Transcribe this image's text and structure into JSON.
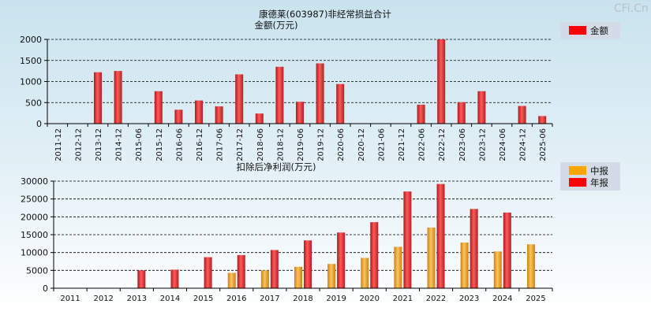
{
  "watermark": "CFi.Cn",
  "colors": {
    "bar_red": "#e8393a",
    "bar_orange": "#f0a22a",
    "legend_red": "#ff0000",
    "legend_orange": "#ffa500",
    "legend_bg": "#d3dbe6"
  },
  "chart_data": [
    {
      "type": "bar",
      "title": "康德莱(603987)非经常损益合计",
      "ylabel": "金额(万元)",
      "ylim": [
        0,
        2000
      ],
      "yticks": [
        0,
        500,
        1000,
        1500,
        2000
      ],
      "grid": true,
      "legend_position": "top-right",
      "categories": [
        "2011-12",
        "2012-12",
        "2013-12",
        "2014-12",
        "2015-06",
        "2015-12",
        "2016-06",
        "2016-12",
        "2017-06",
        "2017-12",
        "2018-06",
        "2018-12",
        "2019-06",
        "2019-12",
        "2020-06",
        "2020-12",
        "2021-06",
        "2021-12",
        "2022-06",
        "2022-12",
        "2023-06",
        "2023-12",
        "2024-06",
        "2024-12",
        "2025-06"
      ],
      "series": [
        {
          "name": "金额",
          "values": [
            0,
            0,
            1220,
            1250,
            0,
            770,
            330,
            550,
            410,
            1170,
            240,
            1350,
            520,
            1430,
            940,
            0,
            0,
            0,
            450,
            2000,
            510,
            770,
            0,
            420,
            180
          ]
        }
      ]
    },
    {
      "type": "bar",
      "title": "扣除后净利润(万元)",
      "ylim": [
        0,
        30000
      ],
      "yticks": [
        0,
        5000,
        10000,
        15000,
        20000,
        25000,
        30000
      ],
      "grid": true,
      "legend_position": "top-right",
      "categories": [
        "2011",
        "2012",
        "2013",
        "2014",
        "2015",
        "2016",
        "2017",
        "2018",
        "2019",
        "2020",
        "2021",
        "2022",
        "2023",
        "2024",
        "2025"
      ],
      "series": [
        {
          "name": "中报",
          "values": [
            null,
            null,
            null,
            null,
            null,
            4300,
            5000,
            6000,
            6800,
            8500,
            11600,
            17000,
            12800,
            10300,
            12300
          ]
        },
        {
          "name": "年报",
          "values": [
            null,
            null,
            5000,
            5200,
            8700,
            9300,
            10700,
            13400,
            15600,
            18500,
            27100,
            29200,
            22200,
            21200,
            null
          ]
        }
      ]
    }
  ]
}
